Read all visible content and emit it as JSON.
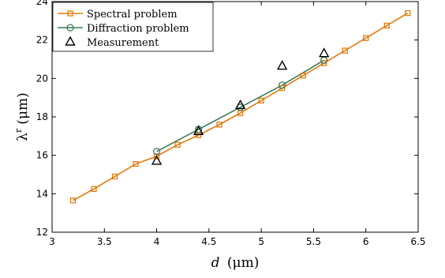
{
  "chart_data": {
    "type": "line",
    "xlabel": {
      "var": "d",
      "unit": "(μm)"
    },
    "ylabel": {
      "var": "λ",
      "sup": "r",
      "unit": "(μm)"
    },
    "xlim": [
      3,
      6.5
    ],
    "ylim": [
      12,
      24
    ],
    "xticks": [
      "3",
      "3.5",
      "4",
      "4.5",
      "5",
      "5.5",
      "6",
      "6.5"
    ],
    "yticks": [
      "12",
      "14",
      "16",
      "18",
      "20",
      "22",
      "24"
    ],
    "grid": false,
    "legend_position": "top-left",
    "series": [
      {
        "name": "Spectral problem",
        "color": "#e07b10",
        "marker": "square",
        "line": true,
        "x": [
          3.2,
          3.4,
          3.6,
          3.8,
          4.0,
          4.2,
          4.4,
          4.6,
          4.8,
          5.0,
          5.2,
          5.4,
          5.6,
          5.8,
          6.0,
          6.2,
          6.4
        ],
        "y": [
          13.65,
          14.25,
          14.9,
          15.55,
          15.95,
          16.55,
          17.05,
          17.6,
          18.2,
          18.85,
          19.5,
          20.15,
          20.8,
          21.45,
          22.1,
          22.75,
          23.4
        ]
      },
      {
        "name": "Diffraction problem",
        "color": "#3d7a5a",
        "marker": "circle",
        "line": true,
        "x": [
          4.0,
          4.4,
          4.8,
          5.2,
          5.6
        ],
        "y": [
          16.2,
          17.35,
          18.5,
          19.65,
          20.95
        ]
      },
      {
        "name": "Measurement",
        "color": "#000000",
        "marker": "triangle",
        "line": false,
        "x": [
          4.0,
          4.4,
          4.8,
          5.2,
          5.6
        ],
        "y": [
          15.7,
          17.25,
          18.6,
          20.65,
          21.3
        ]
      }
    ]
  }
}
